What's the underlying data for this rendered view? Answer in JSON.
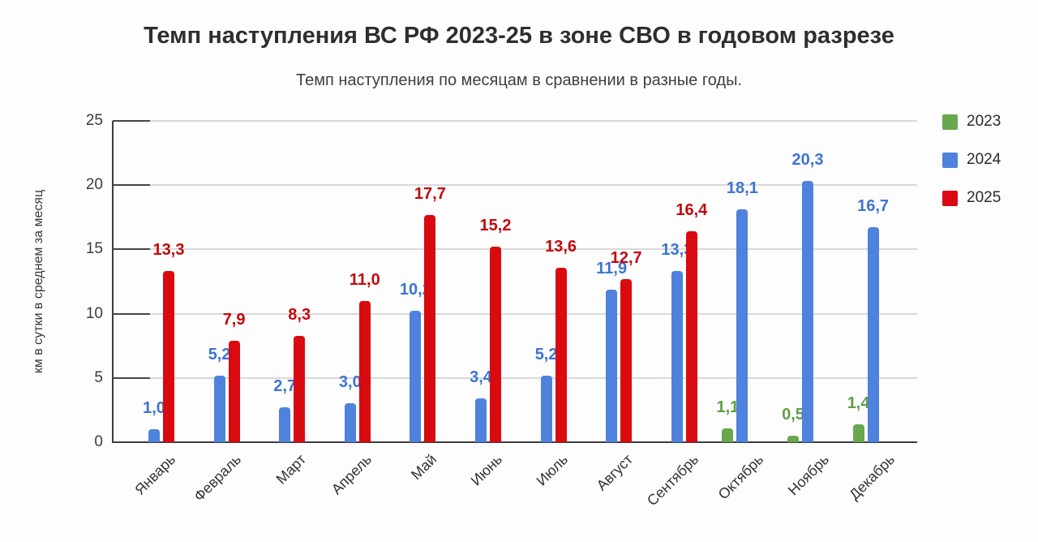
{
  "chart_data": {
    "type": "bar",
    "title": "Темп наступления ВС РФ 2023-25 в зоне СВО в годовом разрезе",
    "subtitle": "Темп наступления по месяцам в сравнении в разные годы.",
    "xlabel": "",
    "ylabel": "км в сутки в среднем за месяц",
    "ylim": [
      0,
      25
    ],
    "yticks": [
      0,
      5,
      10,
      15,
      20,
      25
    ],
    "grid": true,
    "legend_position": "right",
    "decimal_separator": ",",
    "categories": [
      "Январь",
      "Февраль",
      "Март",
      "Апрель",
      "Май",
      "Июнь",
      "Июль",
      "Август",
      "Сентябрь",
      "Октябрь",
      "Ноябрь",
      "Декабрь"
    ],
    "series": [
      {
        "name": "2023",
        "color": "#68a74e",
        "label_color": "#5fa046",
        "values": [
          null,
          null,
          null,
          null,
          null,
          null,
          null,
          null,
          null,
          1.1,
          0.5,
          1.4
        ]
      },
      {
        "name": "2024",
        "color": "#4e82dc",
        "label_color": "#3e74d1",
        "values": [
          1.0,
          5.2,
          2.7,
          3.0,
          10.2,
          3.4,
          5.2,
          11.9,
          13.3,
          18.1,
          20.3,
          16.7
        ]
      },
      {
        "name": "2025",
        "color": "#d90b11",
        "label_color": "#c5070c",
        "values": [
          13.3,
          7.9,
          8.3,
          11.0,
          17.7,
          15.2,
          13.6,
          12.7,
          16.4,
          null,
          null,
          null
        ]
      }
    ]
  }
}
